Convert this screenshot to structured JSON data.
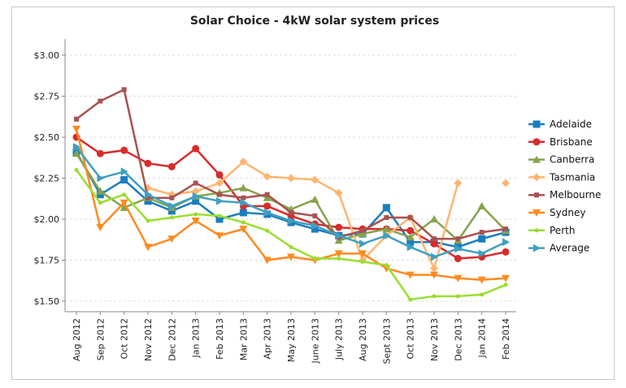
{
  "chart_data": {
    "type": "line",
    "title": "Solar Choice - 4kW solar system prices",
    "xlabel": "",
    "ylabel": "",
    "ylim": [
      1.5,
      3.0
    ],
    "yticks": [
      "$1.50",
      "$1.75",
      "$2.00",
      "$2.25",
      "$2.50",
      "$2.75",
      "$3.00"
    ],
    "ytick_values": [
      1.5,
      1.75,
      2.0,
      2.25,
      2.5,
      2.75,
      3.0
    ],
    "grid": true,
    "legend_position": "right",
    "categories": [
      "Aug 2012",
      "Sep 2012",
      "Oct 2012",
      "Nov 2012",
      "Dec 2012",
      "Jan 2013",
      "Feb 2013",
      "Mar 2013",
      "Apr 2013",
      "May 2013",
      "June 2013",
      "July 2013",
      "Aug 2013",
      "Sept 2013",
      "Oct 2013",
      "Nov 2013",
      "Dec 2013",
      "Jan 2014",
      "Feb 2014"
    ],
    "series": [
      {
        "name": "Adelaide",
        "color": "#1a7dc0",
        "marker": "square",
        "values": [
          2.41,
          2.15,
          2.24,
          2.11,
          2.05,
          2.11,
          2.0,
          2.04,
          2.03,
          1.98,
          1.94,
          1.9,
          1.91,
          2.07,
          1.86,
          1.86,
          1.83,
          1.88,
          1.92
        ]
      },
      {
        "name": "Brisbane",
        "color": "#d92b2b",
        "marker": "circle",
        "values": [
          2.5,
          2.4,
          2.42,
          2.34,
          2.32,
          2.43,
          2.27,
          2.08,
          2.08,
          2.02,
          1.97,
          1.95,
          1.94,
          1.94,
          1.93,
          1.85,
          1.76,
          1.77,
          1.8
        ]
      },
      {
        "name": "Canberra",
        "color": "#86a34c",
        "marker": "triangle-up",
        "values": [
          2.4,
          2.17,
          2.07,
          2.13,
          2.07,
          2.14,
          2.16,
          2.19,
          2.13,
          2.06,
          2.12,
          1.87,
          1.91,
          1.94,
          1.89,
          2.0,
          1.87,
          2.08,
          1.93
        ]
      },
      {
        "name": "Tasmania",
        "color": "#ffb570",
        "marker": "diamond",
        "values": [
          null,
          null,
          null,
          2.19,
          2.15,
          2.17,
          2.22,
          2.35,
          2.26,
          2.25,
          2.24,
          2.16,
          1.75,
          1.9,
          2.01,
          1.7,
          2.22,
          null,
          2.22
        ]
      },
      {
        "name": "Melbourne",
        "color": "#a8524f",
        "marker": "square-small",
        "values": [
          2.61,
          2.72,
          2.79,
          2.13,
          2.13,
          2.22,
          2.15,
          2.13,
          2.15,
          2.04,
          2.02,
          1.89,
          1.93,
          2.01,
          2.01,
          1.88,
          1.88,
          1.92,
          1.94
        ]
      },
      {
        "name": "Sydney",
        "color": "#ff8a1f",
        "marker": "triangle-down",
        "values": [
          2.55,
          1.95,
          2.1,
          1.83,
          1.88,
          1.99,
          1.9,
          1.94,
          1.75,
          1.77,
          1.75,
          1.79,
          1.79,
          1.7,
          1.66,
          1.66,
          1.64,
          1.63,
          1.64
        ]
      },
      {
        "name": "Perth",
        "color": "#99de2e",
        "marker": "dot",
        "values": [
          2.3,
          2.1,
          2.15,
          1.99,
          2.01,
          2.03,
          2.02,
          1.98,
          1.93,
          1.83,
          1.76,
          1.76,
          1.74,
          1.72,
          1.51,
          1.53,
          1.53,
          1.54,
          1.6
        ]
      },
      {
        "name": "Average",
        "color": "#3fa0bf",
        "marker": "triangle-right",
        "values": [
          2.44,
          2.25,
          2.29,
          2.15,
          2.08,
          2.14,
          2.11,
          2.1,
          2.04,
          1.99,
          1.96,
          1.9,
          1.85,
          1.9,
          1.83,
          1.77,
          1.82,
          1.79,
          1.86
        ]
      }
    ]
  }
}
